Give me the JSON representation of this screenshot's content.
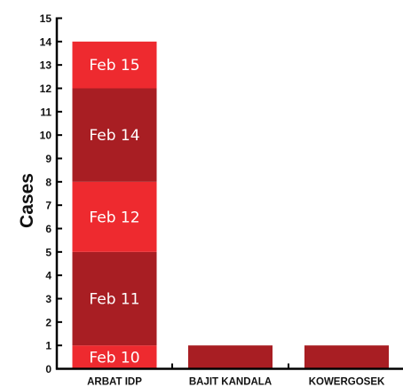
{
  "chart_data": {
    "type": "bar",
    "stacked": true,
    "ylabel": "Cases",
    "xlabel": "",
    "ylim": [
      0,
      15
    ],
    "yticks": [
      0,
      1,
      2,
      3,
      4,
      5,
      6,
      7,
      8,
      9,
      10,
      11,
      12,
      13,
      14,
      15
    ],
    "grid": false,
    "categories": [
      "ARBAT IDP",
      "BAJIT KANDALA",
      "KOWERGOSEK"
    ],
    "stacks": [
      [
        {
          "label": "Feb 10",
          "value": 1,
          "color": "#ee2a2f"
        },
        {
          "label": "Feb 11",
          "value": 4,
          "color": "#a81e23"
        },
        {
          "label": "Feb 12",
          "value": 3,
          "color": "#ee2a2f"
        },
        {
          "label": "Feb 14",
          "value": 4,
          "color": "#a81e23"
        },
        {
          "label": "Feb 15",
          "value": 2,
          "color": "#ee2a2f"
        }
      ],
      [
        {
          "label": "",
          "value": 1,
          "color": "#a81e23"
        }
      ],
      [
        {
          "label": "",
          "value": 1,
          "color": "#a81e23"
        }
      ]
    ],
    "totals": [
      14,
      1,
      1
    ]
  }
}
